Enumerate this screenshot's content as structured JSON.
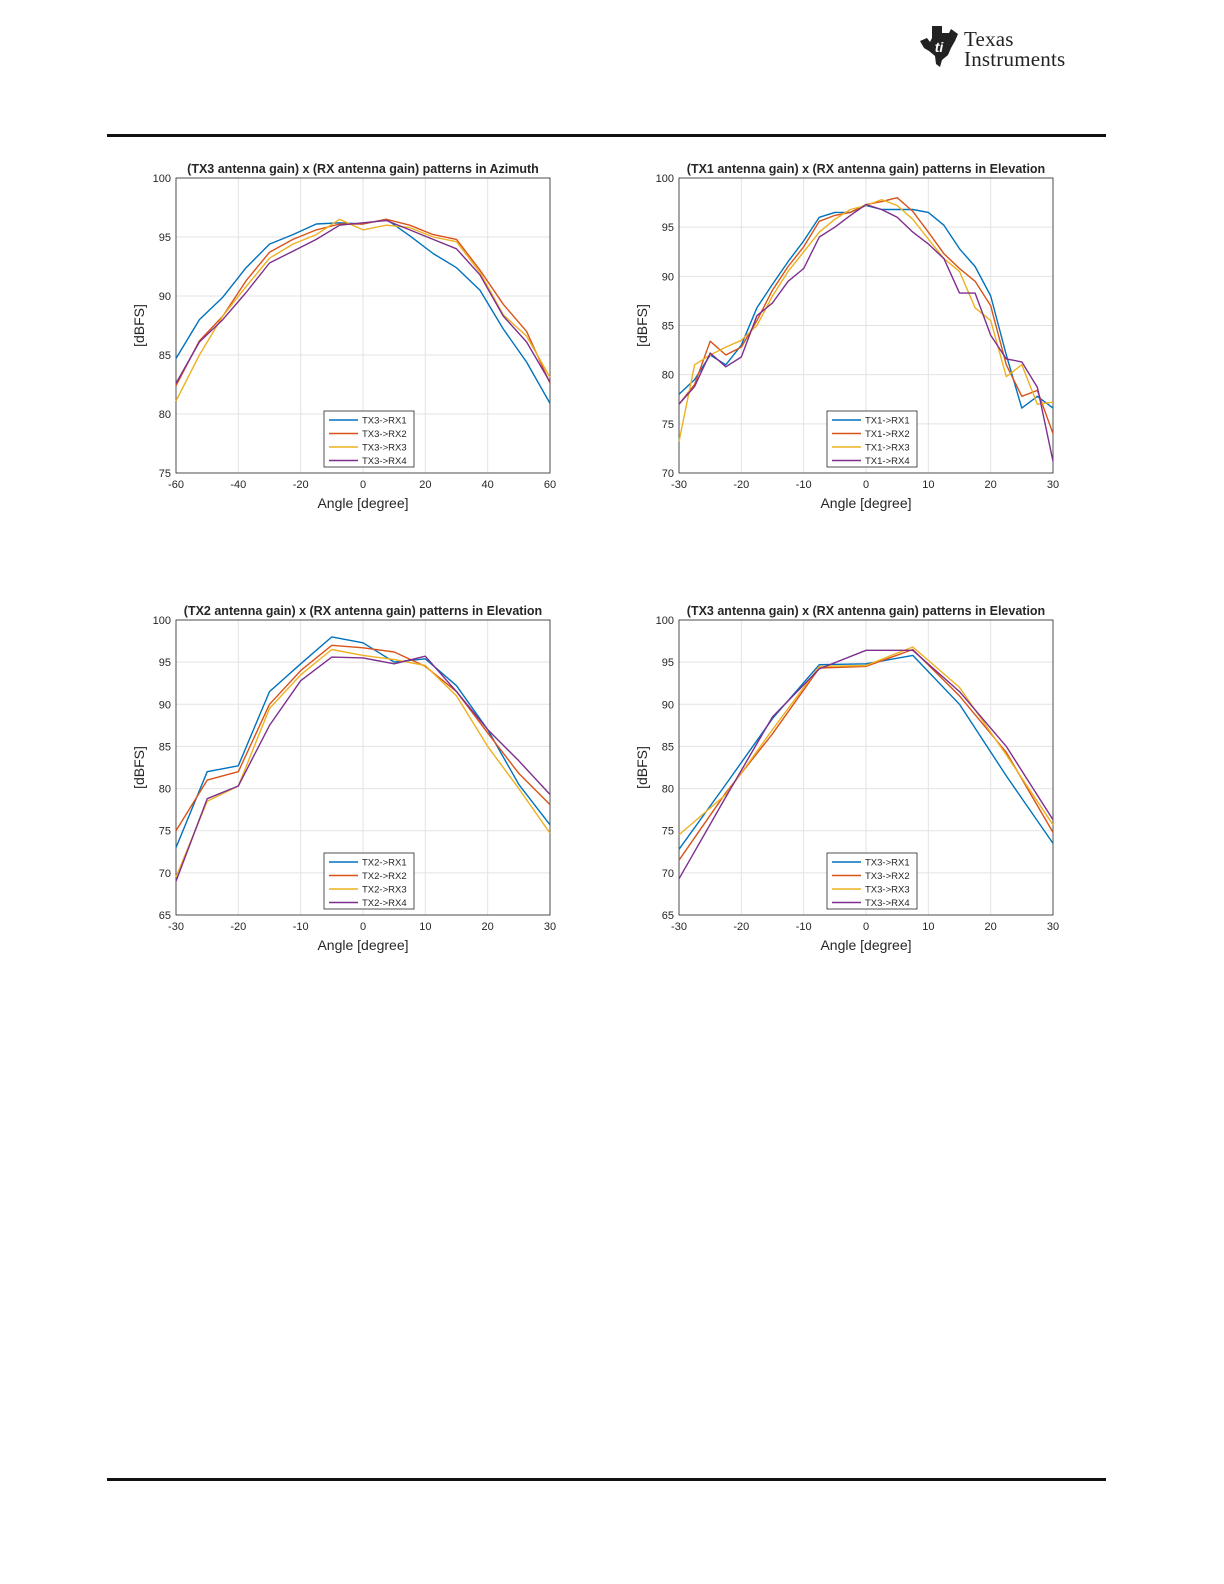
{
  "logo": {
    "brand_line1": "Texas",
    "brand_line2": "Instruments"
  },
  "colors": {
    "series": [
      "#0072BD",
      "#D95319",
      "#EDB120",
      "#7E2F8E"
    ]
  },
  "chart_data": [
    {
      "type": "line",
      "title": "(TX3 antenna gain) x (RX antenna gain) patterns in Azimuth",
      "xlabel": "Angle [degree]",
      "ylabel": "[dBFS]",
      "xlim": [
        -60,
        60
      ],
      "ylim": [
        75,
        100
      ],
      "xticks": [
        "-60",
        "-40",
        "-20",
        "0",
        "20",
        "40",
        "60"
      ],
      "yticks": [
        "75",
        "80",
        "85",
        "90",
        "95",
        "100"
      ],
      "grid": true,
      "legend_position": "lower-center",
      "x": [
        -60,
        -52.5,
        -45,
        -37.5,
        -30,
        -22.5,
        -15,
        -7.5,
        0,
        7.5,
        15,
        22.5,
        30,
        37.5,
        45,
        52.5,
        60
      ],
      "series": [
        {
          "name": "TX3->RX1",
          "values": [
            84.7,
            88.0,
            89.9,
            92.4,
            94.4,
            95.2,
            96.1,
            96.2,
            96.1,
            96.5,
            95.1,
            93.6,
            92.4,
            90.5,
            87.2,
            84.4,
            80.9
          ]
        },
        {
          "name": "TX3->RX2",
          "values": [
            82.4,
            86.2,
            88.3,
            91.3,
            93.7,
            94.8,
            95.6,
            96.1,
            96.1,
            96.5,
            96.0,
            95.2,
            94.8,
            92.2,
            89.3,
            87.0,
            82.6
          ]
        },
        {
          "name": "TX3->RX3",
          "values": [
            81.1,
            85.0,
            88.3,
            90.8,
            93.2,
            94.4,
            95.2,
            96.5,
            95.6,
            96.0,
            95.8,
            95.0,
            94.6,
            92.0,
            88.4,
            86.6,
            83.1
          ]
        },
        {
          "name": "TX3->RX4",
          "values": [
            82.6,
            86.1,
            88.0,
            90.3,
            92.8,
            93.8,
            94.8,
            96.0,
            96.2,
            96.4,
            95.6,
            94.8,
            94.0,
            91.8,
            88.3,
            86.1,
            82.7
          ]
        }
      ]
    },
    {
      "type": "line",
      "title": "(TX1 antenna gain) x (RX antenna gain) patterns in Elevation",
      "xlabel": "Angle [degree]",
      "ylabel": "[dBFS]",
      "xlim": [
        -30,
        30
      ],
      "ylim": [
        70,
        100
      ],
      "xticks": [
        "-30",
        "-20",
        "-10",
        "0",
        "10",
        "20",
        "30"
      ],
      "yticks": [
        "70",
        "75",
        "80",
        "85",
        "90",
        "95",
        "100"
      ],
      "grid": true,
      "legend_position": "lower-center",
      "x": [
        -30,
        -27.5,
        -25,
        -22.5,
        -20,
        -17.5,
        -15,
        -12.5,
        -10,
        -7.5,
        -5,
        -2.5,
        0,
        2.5,
        5,
        7.5,
        10,
        12.5,
        15,
        17.5,
        20,
        22.5,
        25,
        27.5,
        30
      ],
      "series": [
        {
          "name": "TX1->RX1",
          "values": [
            78.0,
            79.5,
            82.0,
            81.0,
            83.0,
            86.8,
            89.2,
            91.5,
            93.6,
            96.0,
            96.5,
            96.5,
            97.2,
            96.8,
            96.8,
            96.8,
            96.5,
            95.2,
            92.8,
            91.0,
            88.0,
            82.0,
            76.6,
            77.8,
            76.6
          ]
        },
        {
          "name": "TX1->RX2",
          "values": [
            77.0,
            79.0,
            83.4,
            82.0,
            82.8,
            85.5,
            88.6,
            91.0,
            93.0,
            95.6,
            96.2,
            96.5,
            97.3,
            97.6,
            98.0,
            96.6,
            94.5,
            92.3,
            90.8,
            89.5,
            87.0,
            81.0,
            77.8,
            78.4,
            74.0
          ]
        },
        {
          "name": "TX1->RX3",
          "values": [
            73.2,
            81.0,
            82.0,
            82.8,
            83.5,
            85.0,
            88.0,
            90.5,
            92.5,
            94.5,
            95.8,
            96.8,
            97.2,
            97.8,
            97.2,
            95.8,
            93.8,
            91.8,
            90.5,
            86.8,
            85.5,
            79.8,
            81.0,
            77.0,
            77.2
          ]
        },
        {
          "name": "TX1->RX4",
          "values": [
            77.0,
            78.8,
            82.2,
            80.8,
            81.8,
            86.0,
            87.3,
            89.5,
            90.8,
            94.0,
            95.0,
            96.2,
            97.3,
            96.8,
            96.0,
            94.5,
            93.3,
            91.8,
            88.3,
            88.3,
            84.0,
            81.6,
            81.3,
            78.7,
            71.2
          ]
        }
      ]
    },
    {
      "type": "line",
      "title": "(TX2 antenna gain) x (RX antenna gain) patterns in Elevation",
      "xlabel": "Angle [degree]",
      "ylabel": "[dBFS]",
      "xlim": [
        -30,
        30
      ],
      "ylim": [
        65,
        100
      ],
      "xticks": [
        "-30",
        "-20",
        "-10",
        "0",
        "10",
        "20",
        "30"
      ],
      "yticks": [
        "65",
        "70",
        "75",
        "80",
        "85",
        "90",
        "95",
        "100"
      ],
      "grid": true,
      "legend_position": "lower-center",
      "x": [
        -30,
        -25,
        -20,
        -15,
        -10,
        -5,
        0,
        5,
        10,
        15,
        20,
        25,
        30
      ],
      "series": [
        {
          "name": "TX2->RX1",
          "values": [
            73.0,
            82.0,
            82.7,
            91.5,
            94.8,
            98.0,
            97.3,
            95.0,
            95.4,
            92.2,
            87.0,
            80.5,
            75.7
          ]
        },
        {
          "name": "TX2->RX2",
          "values": [
            75.0,
            81.0,
            82.0,
            90.0,
            94.0,
            97.0,
            96.7,
            96.2,
            94.5,
            91.5,
            86.6,
            81.8,
            78.1
          ]
        },
        {
          "name": "TX2->RX3",
          "values": [
            69.5,
            78.5,
            80.3,
            89.5,
            93.5,
            96.5,
            95.8,
            95.3,
            94.6,
            91.0,
            85.0,
            80.0,
            74.7
          ]
        },
        {
          "name": "TX2->RX4",
          "values": [
            69.0,
            78.8,
            80.3,
            87.5,
            92.8,
            95.6,
            95.5,
            94.8,
            95.7,
            91.5,
            87.0,
            83.3,
            79.3
          ]
        }
      ]
    },
    {
      "type": "line",
      "title": "(TX3 antenna gain) x (RX antenna gain) patterns in Elevation",
      "xlabel": "Angle [degree]",
      "ylabel": "[dBFS]",
      "xlim": [
        -30,
        30
      ],
      "ylim": [
        65,
        100
      ],
      "xticks": [
        "-30",
        "-20",
        "-10",
        "0",
        "10",
        "20",
        "30"
      ],
      "yticks": [
        "65",
        "70",
        "75",
        "80",
        "85",
        "90",
        "95",
        "100"
      ],
      "grid": true,
      "legend_position": "lower-center",
      "x": [
        -30,
        -22.5,
        -15,
        -7.5,
        0,
        7.5,
        15,
        22.5,
        30
      ],
      "series": [
        {
          "name": "TX3->RX1",
          "values": [
            72.8,
            80.5,
            88.3,
            94.7,
            94.8,
            95.8,
            90.0,
            81.5,
            73.5
          ]
        },
        {
          "name": "TX3->RX2",
          "values": [
            71.5,
            79.5,
            86.5,
            94.3,
            94.5,
            96.5,
            91.0,
            84.3,
            74.8
          ]
        },
        {
          "name": "TX3->RX3",
          "values": [
            74.5,
            79.3,
            87.0,
            94.5,
            94.6,
            96.8,
            92.0,
            84.0,
            75.7
          ]
        },
        {
          "name": "TX3->RX4",
          "values": [
            69.3,
            79.0,
            88.5,
            94.2,
            96.4,
            96.4,
            91.5,
            85.0,
            76.3
          ]
        }
      ]
    }
  ]
}
